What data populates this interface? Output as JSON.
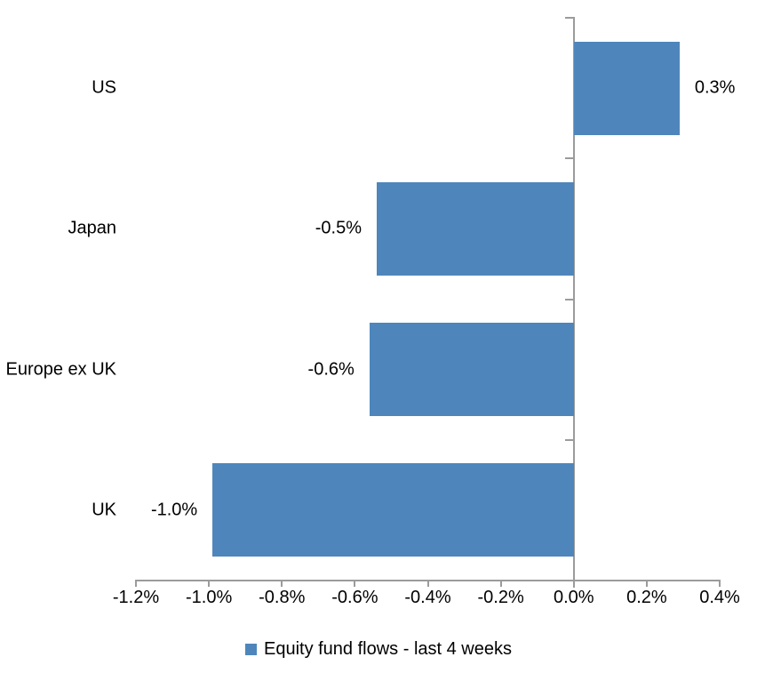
{
  "chart_data": {
    "type": "bar",
    "orientation": "horizontal",
    "title": "",
    "categories": [
      "US",
      "Japan",
      "Europe ex UK",
      "UK"
    ],
    "values": [
      0.3,
      -0.5,
      -0.6,
      -1.0
    ],
    "data_labels": [
      "0.3%",
      "-0.5%",
      "-0.6%",
      "-1.0%"
    ],
    "bar_values_precise": [
      0.29,
      -0.54,
      -0.56,
      -0.99
    ],
    "series_name": "Equity fund flows - last 4 weeks",
    "unit": "%",
    "xlim": [
      -1.2,
      0.4
    ],
    "xtick_step": 0.2,
    "xtick_labels": [
      "-1.2%",
      "-1.0%",
      "-0.8%",
      "-0.6%",
      "-0.4%",
      "-0.2%",
      "0.0%",
      "0.2%",
      "0.4%"
    ],
    "grid": false,
    "legend_position": "bottom",
    "colors": {
      "bar": "#4e86bb",
      "axis": "#9b9b9b",
      "text": "#000000",
      "background": "#ffffff"
    }
  }
}
